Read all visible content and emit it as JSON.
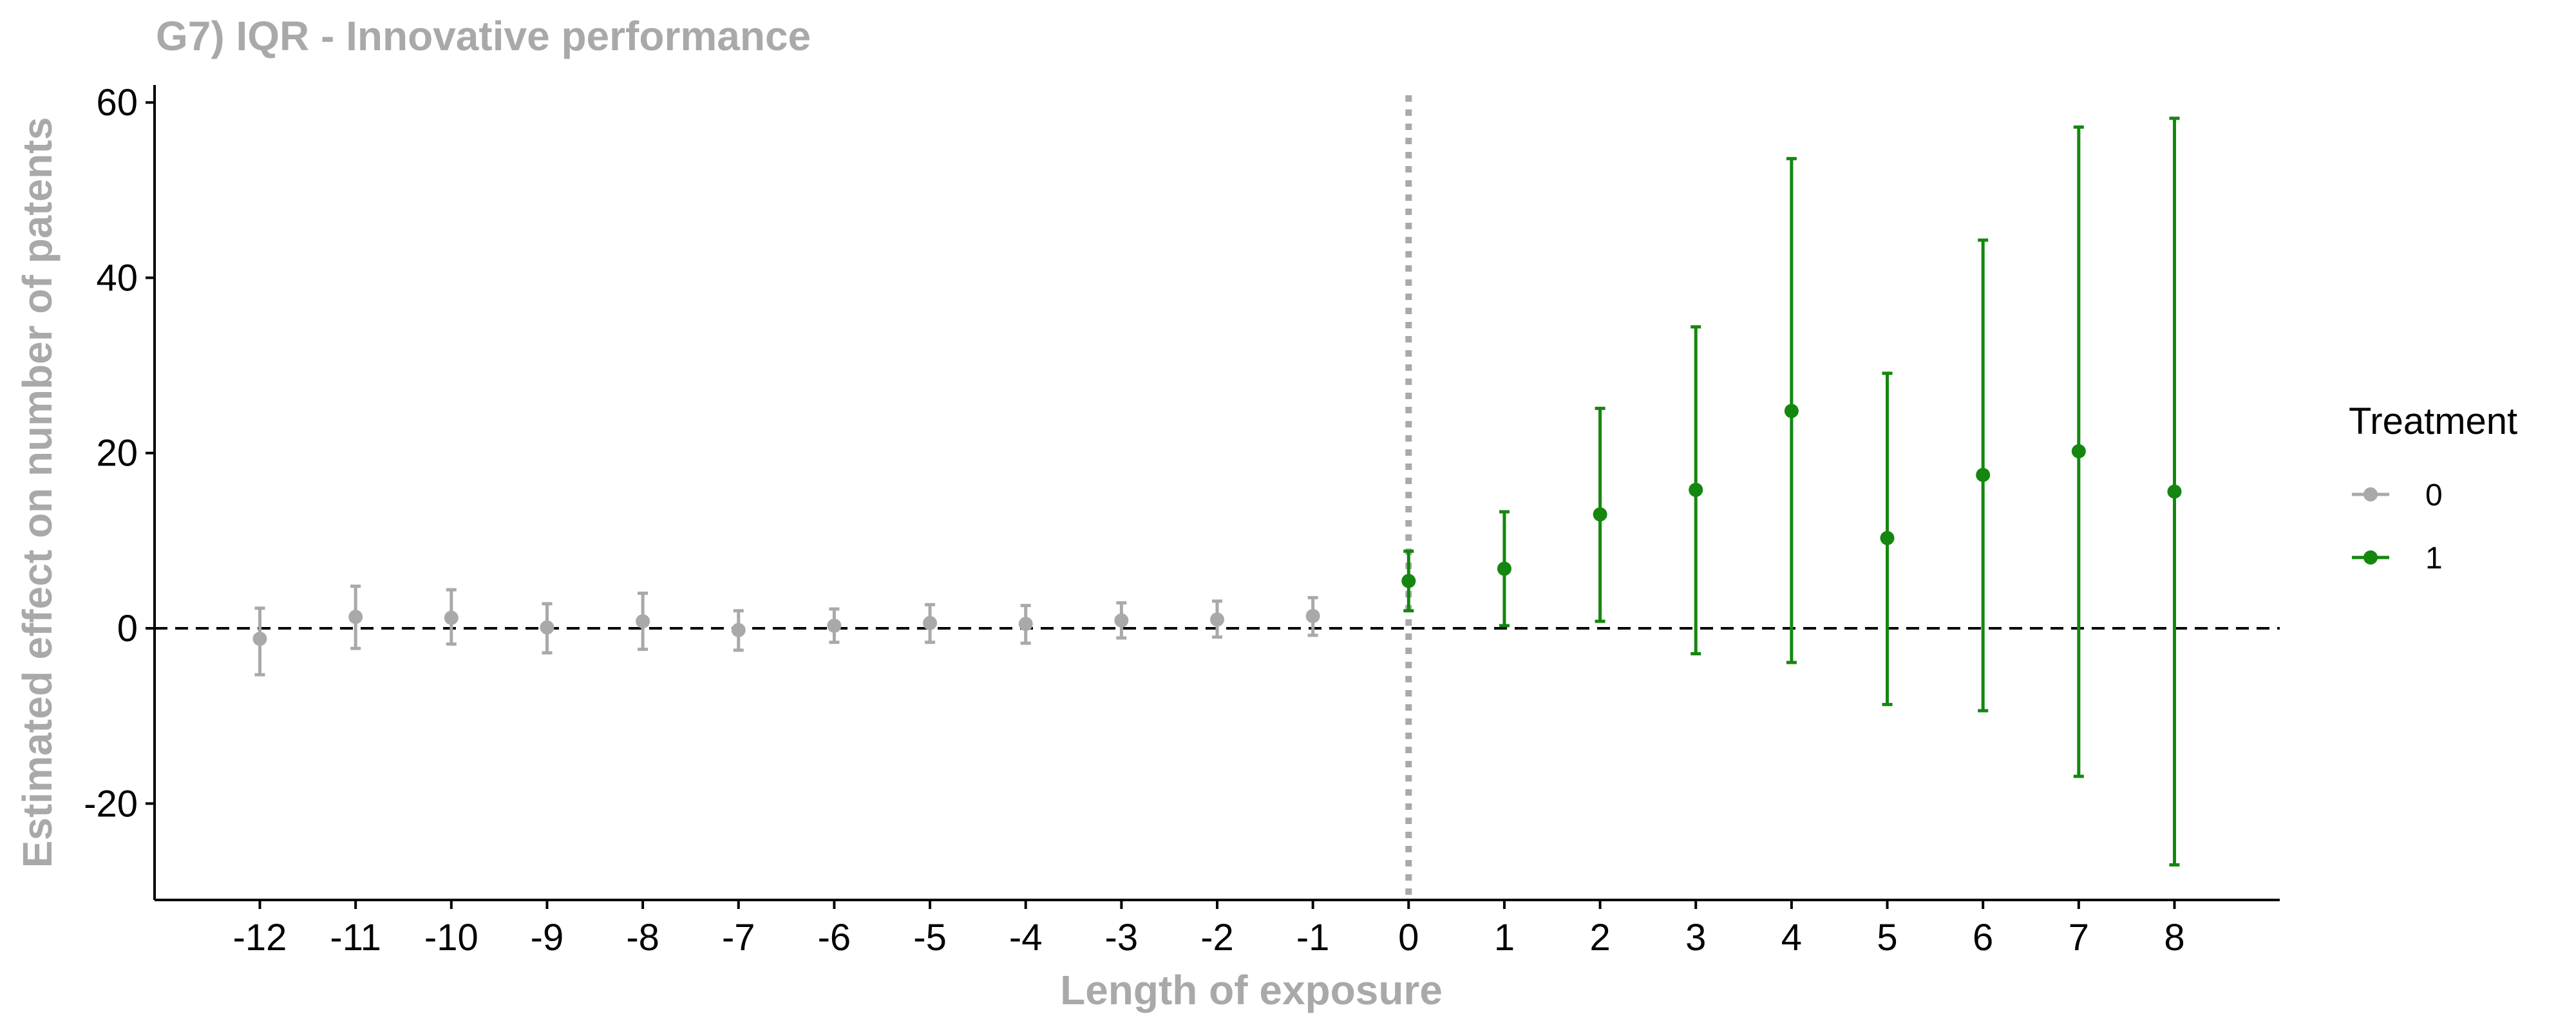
{
  "chart_data": {
    "type": "scatter",
    "title": "G7) IQR - Innovative performance",
    "xlabel": "Length of exposure",
    "ylabel": "Estimated effect on number of patents",
    "x_ticks": [
      "-12",
      "-11",
      "-10",
      "-9",
      "-8",
      "-7",
      "-6",
      "-5",
      "-4",
      "-3",
      "-2",
      "-1",
      "0",
      "1",
      "2",
      "3",
      "4",
      "5",
      "6",
      "7",
      "8"
    ],
    "y_ticks": [
      "-20",
      "0",
      "20",
      "40",
      "60"
    ],
    "xlim": [
      -13.1,
      9.1
    ],
    "ylim": [
      -31,
      62
    ],
    "reference_lines": {
      "horizontal_y": 0,
      "horizontal_style": "dashed",
      "vertical_x": 0,
      "vertical_style": "dotted"
    },
    "legend": {
      "title": "Treatment",
      "placement": "right"
    },
    "series": [
      {
        "name": "0",
        "color": "#a9a9a9",
        "points": [
          {
            "x": -12,
            "y": -1.2,
            "lo": -5.3,
            "hi": 2.3
          },
          {
            "x": -11,
            "y": 1.3,
            "lo": -2.3,
            "hi": 4.8
          },
          {
            "x": -10,
            "y": 1.2,
            "lo": -1.8,
            "hi": 4.4
          },
          {
            "x": -9,
            "y": 0.1,
            "lo": -2.8,
            "hi": 2.8
          },
          {
            "x": -8,
            "y": 0.8,
            "lo": -2.4,
            "hi": 4.0
          },
          {
            "x": -7,
            "y": -0.2,
            "lo": -2.5,
            "hi": 2.0
          },
          {
            "x": -6,
            "y": 0.3,
            "lo": -1.6,
            "hi": 2.2
          },
          {
            "x": -5,
            "y": 0.6,
            "lo": -1.6,
            "hi": 2.7
          },
          {
            "x": -4,
            "y": 0.5,
            "lo": -1.7,
            "hi": 2.6
          },
          {
            "x": -3,
            "y": 0.9,
            "lo": -1.1,
            "hi": 2.9
          },
          {
            "x": -2,
            "y": 1.0,
            "lo": -1.0,
            "hi": 3.1
          },
          {
            "x": -1,
            "y": 1.4,
            "lo": -0.8,
            "hi": 3.5
          }
        ]
      },
      {
        "name": "1",
        "color": "#13870f",
        "points": [
          {
            "x": 0,
            "y": 5.4,
            "lo": 2.0,
            "hi": 8.8
          },
          {
            "x": 1,
            "y": 6.8,
            "lo": 0.3,
            "hi": 13.3
          },
          {
            "x": 2,
            "y": 13.0,
            "lo": 0.8,
            "hi": 25.1
          },
          {
            "x": 3,
            "y": 15.8,
            "lo": -2.9,
            "hi": 34.4
          },
          {
            "x": 4,
            "y": 24.8,
            "lo": -3.9,
            "hi": 53.6
          },
          {
            "x": 5,
            "y": 10.3,
            "lo": -8.7,
            "hi": 29.1
          },
          {
            "x": 6,
            "y": 17.5,
            "lo": -9.4,
            "hi": 44.3
          },
          {
            "x": 7,
            "y": 20.2,
            "lo": -16.9,
            "hi": 57.2
          },
          {
            "x": 8,
            "y": 15.6,
            "lo": -27.0,
            "hi": 58.2
          }
        ]
      }
    ]
  }
}
